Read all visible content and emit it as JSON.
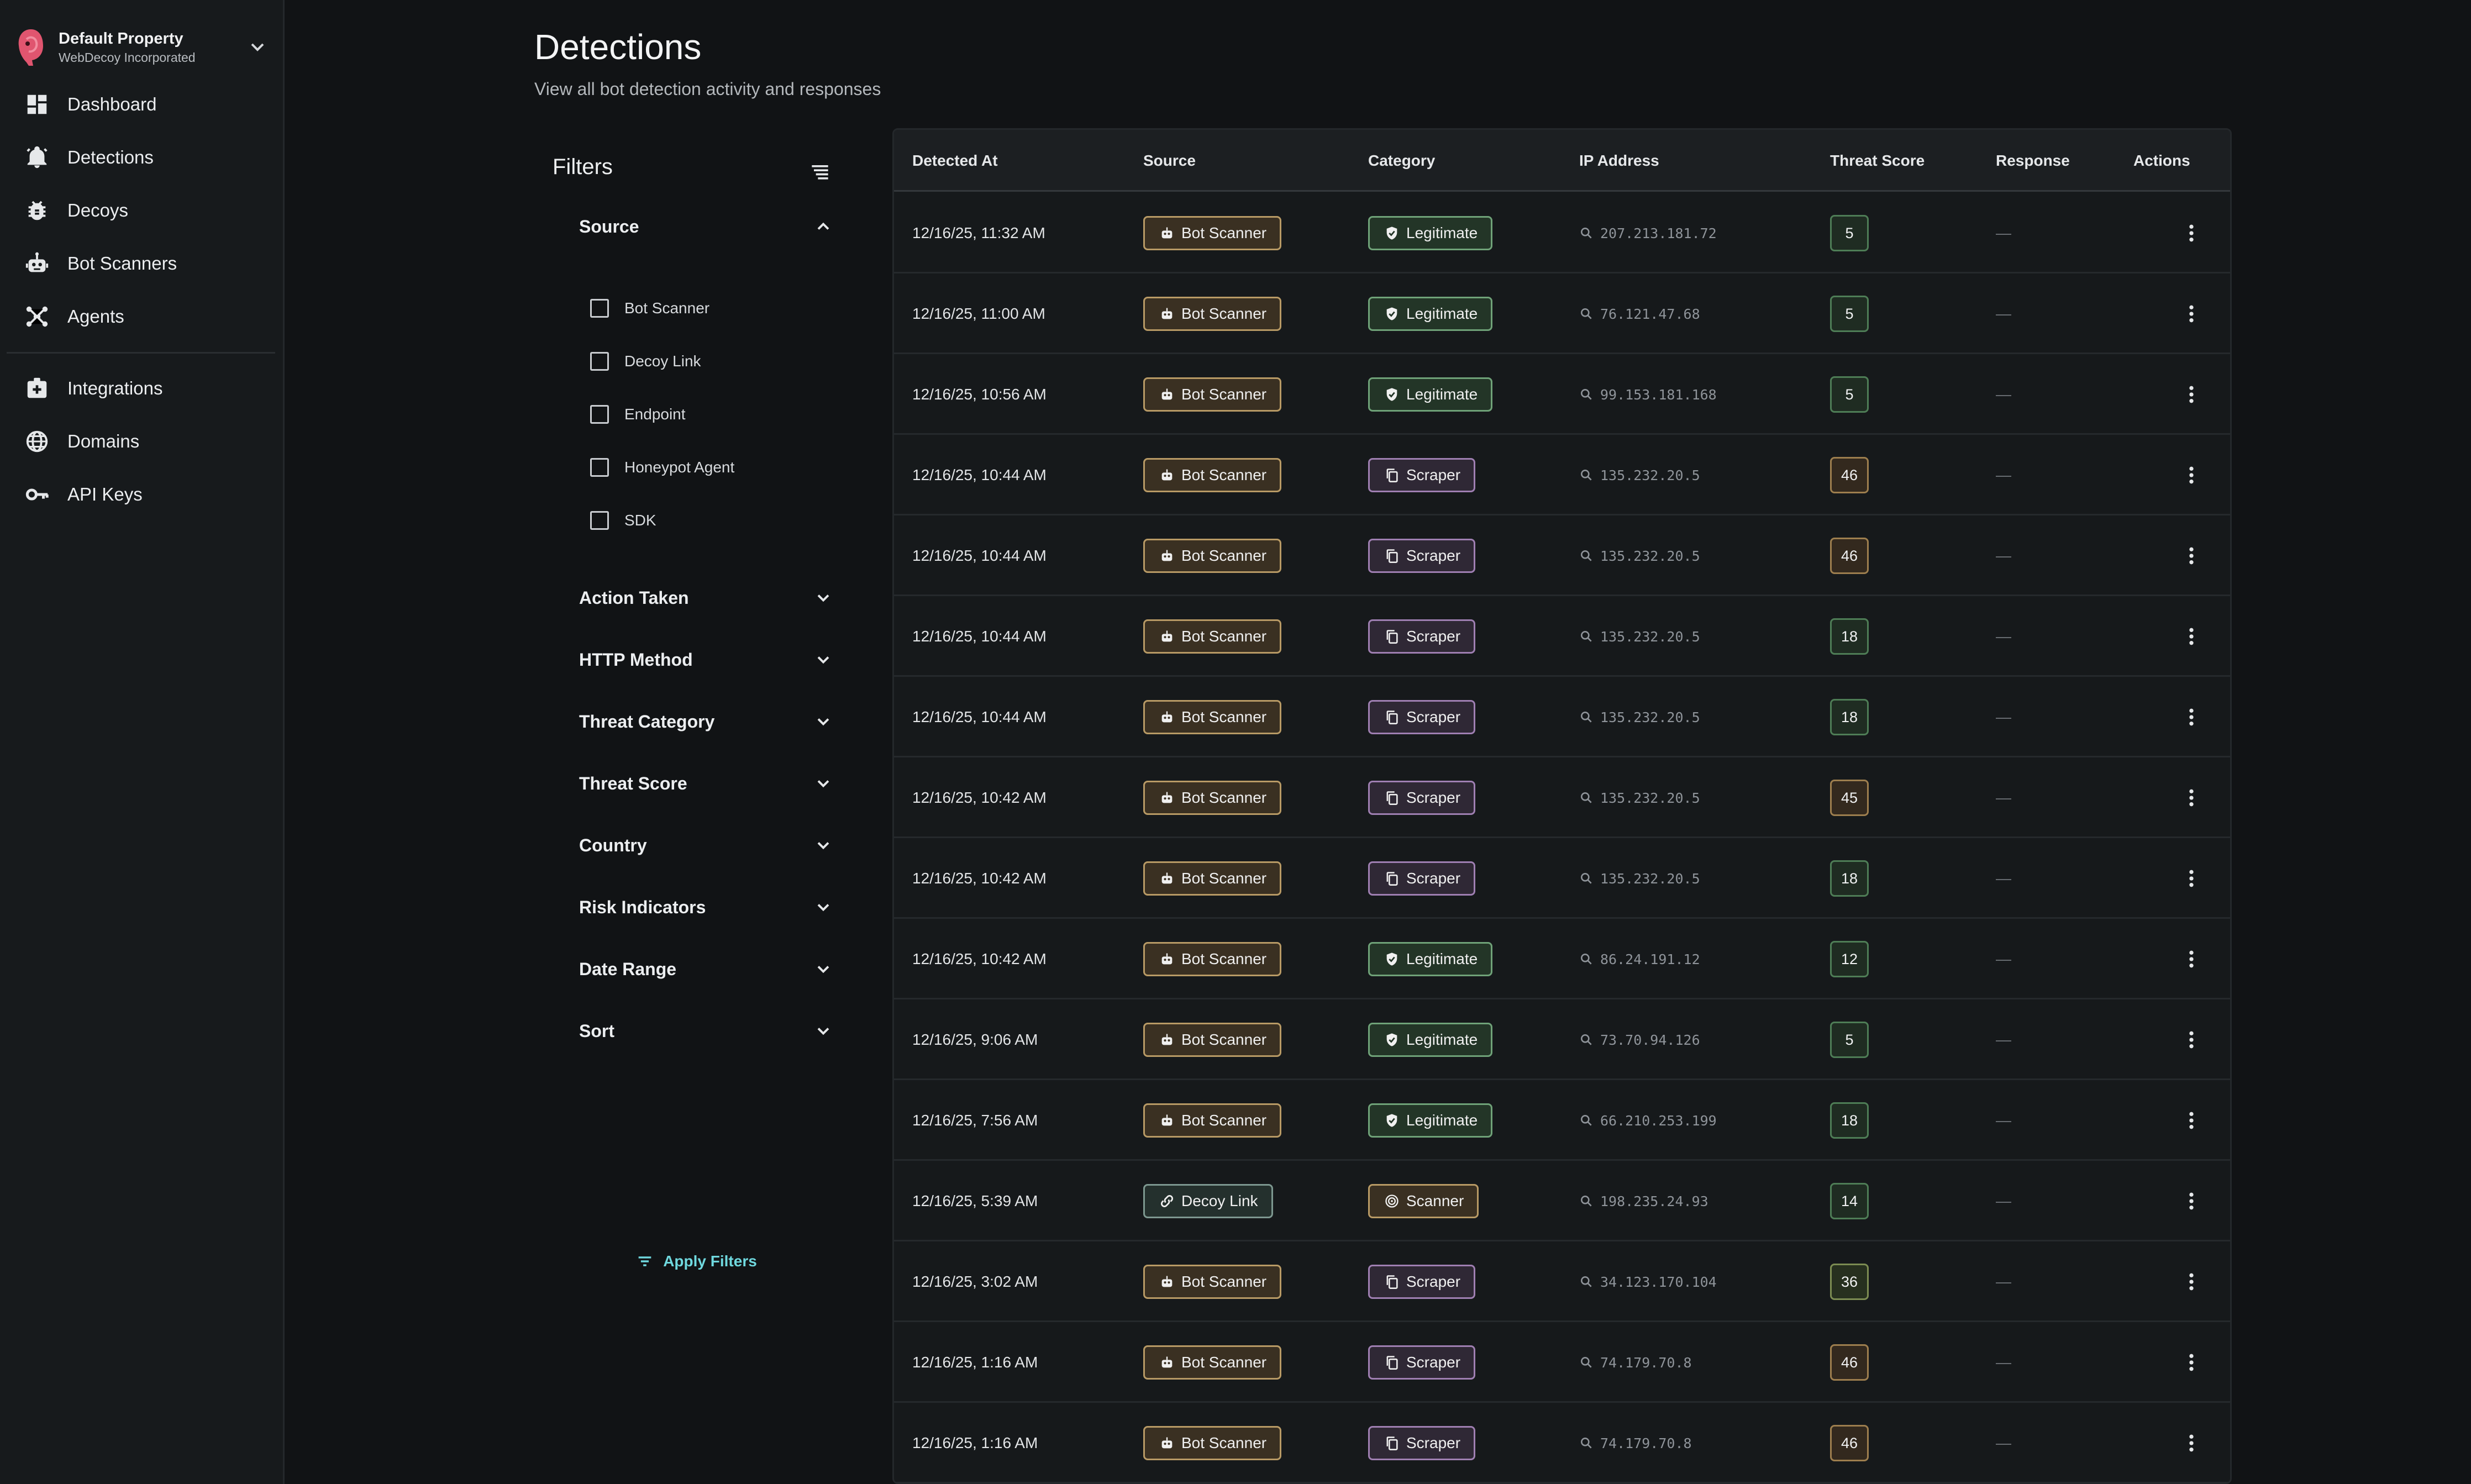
{
  "property": {
    "name": "Default Property",
    "org": "WebDecoy Incorporated"
  },
  "nav": {
    "primary": [
      {
        "label": "Dashboard",
        "icon": "dashboard-icon"
      },
      {
        "label": "Detections",
        "icon": "bell-icon"
      },
      {
        "label": "Decoys",
        "icon": "bug-icon"
      },
      {
        "label": "Bot Scanners",
        "icon": "robot-icon"
      },
      {
        "label": "Agents",
        "icon": "agents-icon"
      }
    ],
    "secondary": [
      {
        "label": "Integrations",
        "icon": "integrations-icon"
      },
      {
        "label": "Domains",
        "icon": "globe-icon"
      },
      {
        "label": "API Keys",
        "icon": "key-icon"
      }
    ]
  },
  "header": {
    "title": "Detections",
    "subtitle": "View all bot detection activity and responses"
  },
  "filters": {
    "title": "Filters",
    "source": {
      "label": "Source",
      "options": [
        "Bot Scanner",
        "Decoy Link",
        "Endpoint",
        "Honeypot Agent",
        "SDK"
      ]
    },
    "sections": [
      "Action Taken",
      "HTTP Method",
      "Threat Category",
      "Threat Score",
      "Country",
      "Risk Indicators",
      "Date Range",
      "Sort"
    ],
    "apply_label": "Apply Filters"
  },
  "table": {
    "columns": [
      "Detected At",
      "Source",
      "Category",
      "IP Address",
      "Threat Score",
      "Response",
      "Actions"
    ],
    "rows": [
      {
        "detected_at": "12/16/25, 11:32 AM",
        "source": "Bot Scanner",
        "category": "Legitimate",
        "ip": "207.213.181.72",
        "score": "5",
        "response": "—"
      },
      {
        "detected_at": "12/16/25, 11:00 AM",
        "source": "Bot Scanner",
        "category": "Legitimate",
        "ip": "76.121.47.68",
        "score": "5",
        "response": "—"
      },
      {
        "detected_at": "12/16/25, 10:56 AM",
        "source": "Bot Scanner",
        "category": "Legitimate",
        "ip": "99.153.181.168",
        "score": "5",
        "response": "—"
      },
      {
        "detected_at": "12/16/25, 10:44 AM",
        "source": "Bot Scanner",
        "category": "Scraper",
        "ip": "135.232.20.5",
        "score": "46",
        "response": "—"
      },
      {
        "detected_at": "12/16/25, 10:44 AM",
        "source": "Bot Scanner",
        "category": "Scraper",
        "ip": "135.232.20.5",
        "score": "46",
        "response": "—"
      },
      {
        "detected_at": "12/16/25, 10:44 AM",
        "source": "Bot Scanner",
        "category": "Scraper",
        "ip": "135.232.20.5",
        "score": "18",
        "response": "—"
      },
      {
        "detected_at": "12/16/25, 10:44 AM",
        "source": "Bot Scanner",
        "category": "Scraper",
        "ip": "135.232.20.5",
        "score": "18",
        "response": "—"
      },
      {
        "detected_at": "12/16/25, 10:42 AM",
        "source": "Bot Scanner",
        "category": "Scraper",
        "ip": "135.232.20.5",
        "score": "45",
        "response": "—"
      },
      {
        "detected_at": "12/16/25, 10:42 AM",
        "source": "Bot Scanner",
        "category": "Scraper",
        "ip": "135.232.20.5",
        "score": "18",
        "response": "—"
      },
      {
        "detected_at": "12/16/25, 10:42 AM",
        "source": "Bot Scanner",
        "category": "Legitimate",
        "ip": "86.24.191.12",
        "score": "12",
        "response": "—"
      },
      {
        "detected_at": "12/16/25, 9:06 AM",
        "source": "Bot Scanner",
        "category": "Legitimate",
        "ip": "73.70.94.126",
        "score": "5",
        "response": "—"
      },
      {
        "detected_at": "12/16/25, 7:56 AM",
        "source": "Bot Scanner",
        "category": "Legitimate",
        "ip": "66.210.253.199",
        "score": "18",
        "response": "—"
      },
      {
        "detected_at": "12/16/25, 5:39 AM",
        "source": "Decoy Link",
        "category": "Scanner",
        "ip": "198.235.24.93",
        "score": "14",
        "response": "—"
      },
      {
        "detected_at": "12/16/25, 3:02 AM",
        "source": "Bot Scanner",
        "category": "Scraper",
        "ip": "34.123.170.104",
        "score": "36",
        "response": "—"
      },
      {
        "detected_at": "12/16/25, 1:16 AM",
        "source": "Bot Scanner",
        "category": "Scraper",
        "ip": "74.179.70.8",
        "score": "46",
        "response": "—"
      },
      {
        "detected_at": "12/16/25, 1:16 AM",
        "source": "Bot Scanner",
        "category": "Scraper",
        "ip": "74.179.70.8",
        "score": "46",
        "response": "—"
      }
    ]
  },
  "colors": {
    "accent": "#6fd8de",
    "logo": "#e0556f",
    "bot_scanner": "#b89a65",
    "legitimate": "#6fa278",
    "scraper": "#9f7fb2"
  }
}
